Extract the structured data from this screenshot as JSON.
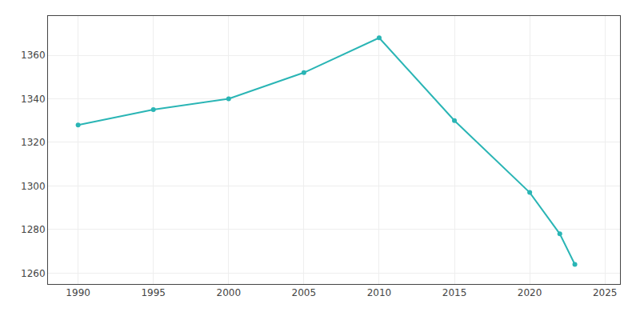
{
  "chart_data": {
    "type": "line",
    "x": [
      1990,
      1995,
      2000,
      2005,
      2010,
      2015,
      2020,
      2022,
      2023
    ],
    "values": [
      1328,
      1335,
      1340,
      1352,
      1368,
      1330,
      1297,
      1278,
      1264
    ],
    "color": "#2ab5b5",
    "marker": "circle",
    "xlim": [
      1988,
      2026
    ],
    "ylim": [
      1255,
      1378
    ],
    "xticks": [
      1990,
      1995,
      2000,
      2005,
      2010,
      2015,
      2020,
      2025
    ],
    "yticks": [
      1260,
      1280,
      1300,
      1320,
      1340,
      1360
    ],
    "grid": true
  }
}
